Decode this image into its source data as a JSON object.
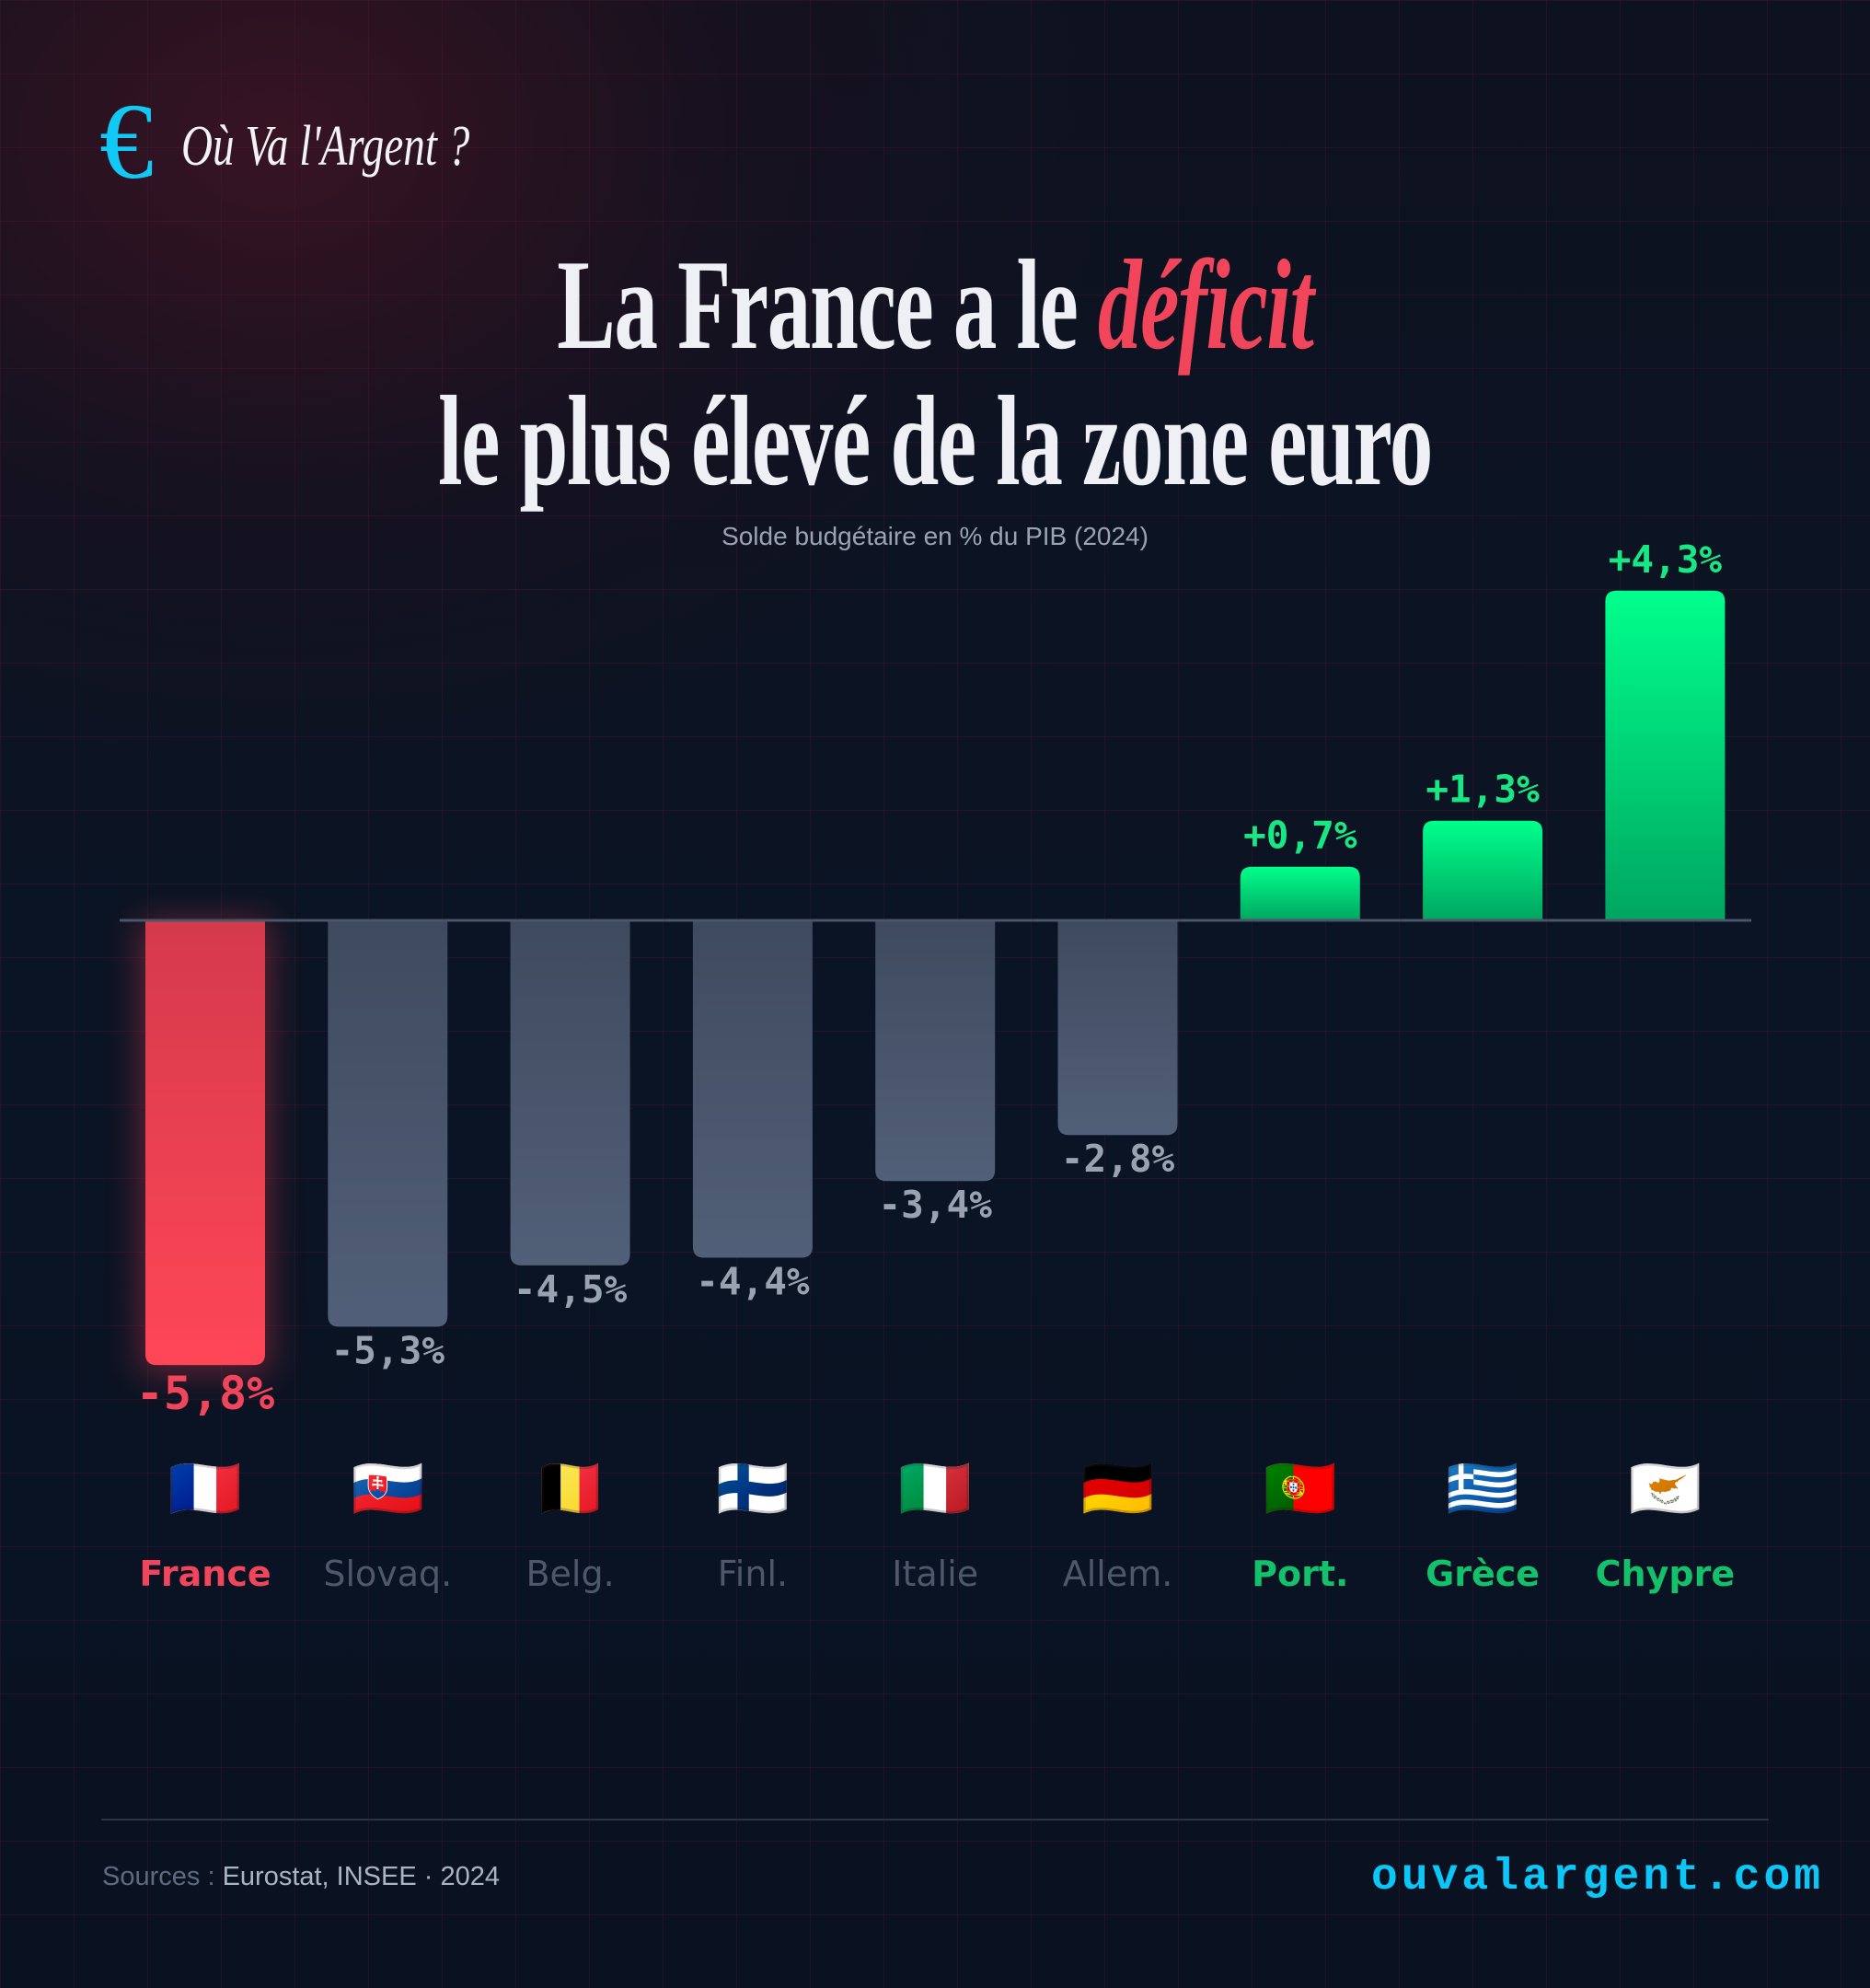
{
  "brand": {
    "logo_symbol": "€",
    "logo_icon": "euro-icon",
    "name": "Où Va l'Argent ?",
    "accent_color": "#12c8f5"
  },
  "title": {
    "line1_prefix": "La France a le ",
    "line1_accent": "déficit",
    "line2": "le plus élevé de la zone euro",
    "accent_color": "#f0455a"
  },
  "subtitle": "Solde budgétaire en % du PIB (2024)",
  "chart_data": {
    "type": "bar",
    "title": "La France a le déficit le plus élevé de la zone euro",
    "subtitle": "Solde budgétaire en % du PIB (2024)",
    "xlabel": "",
    "ylabel": "Solde budgétaire (% du PIB)",
    "ylim": [
      -5.8,
      4.3
    ],
    "grid": false,
    "legend": "none",
    "categories": [
      "France",
      "Slovaq.",
      "Belg.",
      "Finl.",
      "Italie",
      "Allem.",
      "Port.",
      "Grèce",
      "Chypre"
    ],
    "flags": [
      "🇫🇷",
      "🇸🇰",
      "🇧🇪",
      "🇫🇮",
      "🇮🇹",
      "🇩🇪",
      "🇵🇹",
      "🇬🇷",
      "🇨🇾"
    ],
    "values": [
      -5.8,
      -5.3,
      -4.5,
      -4.4,
      -3.4,
      -2.8,
      0.7,
      1.3,
      4.3
    ],
    "value_labels": [
      "-5,8%",
      "-5,3%",
      "-4,5%",
      "-4,4%",
      "-3,4%",
      "-2,8%",
      "+0,7%",
      "+1,3%",
      "+4,3%"
    ],
    "highlight": "France",
    "colors": {
      "highlight": "#f0455a",
      "negative": "#4b586e",
      "negative_label": "#98a2b1",
      "negative_category": "#4d586b",
      "positive_top": "#00ff8c",
      "positive_bottom": "#00a660",
      "positive_label": "#18e884",
      "positive_category": "#13c16b"
    }
  },
  "footer": {
    "sources_label": "Sources : ",
    "sources_value": "Eurostat, INSEE · 2024",
    "website": "ouvalargent.com"
  }
}
